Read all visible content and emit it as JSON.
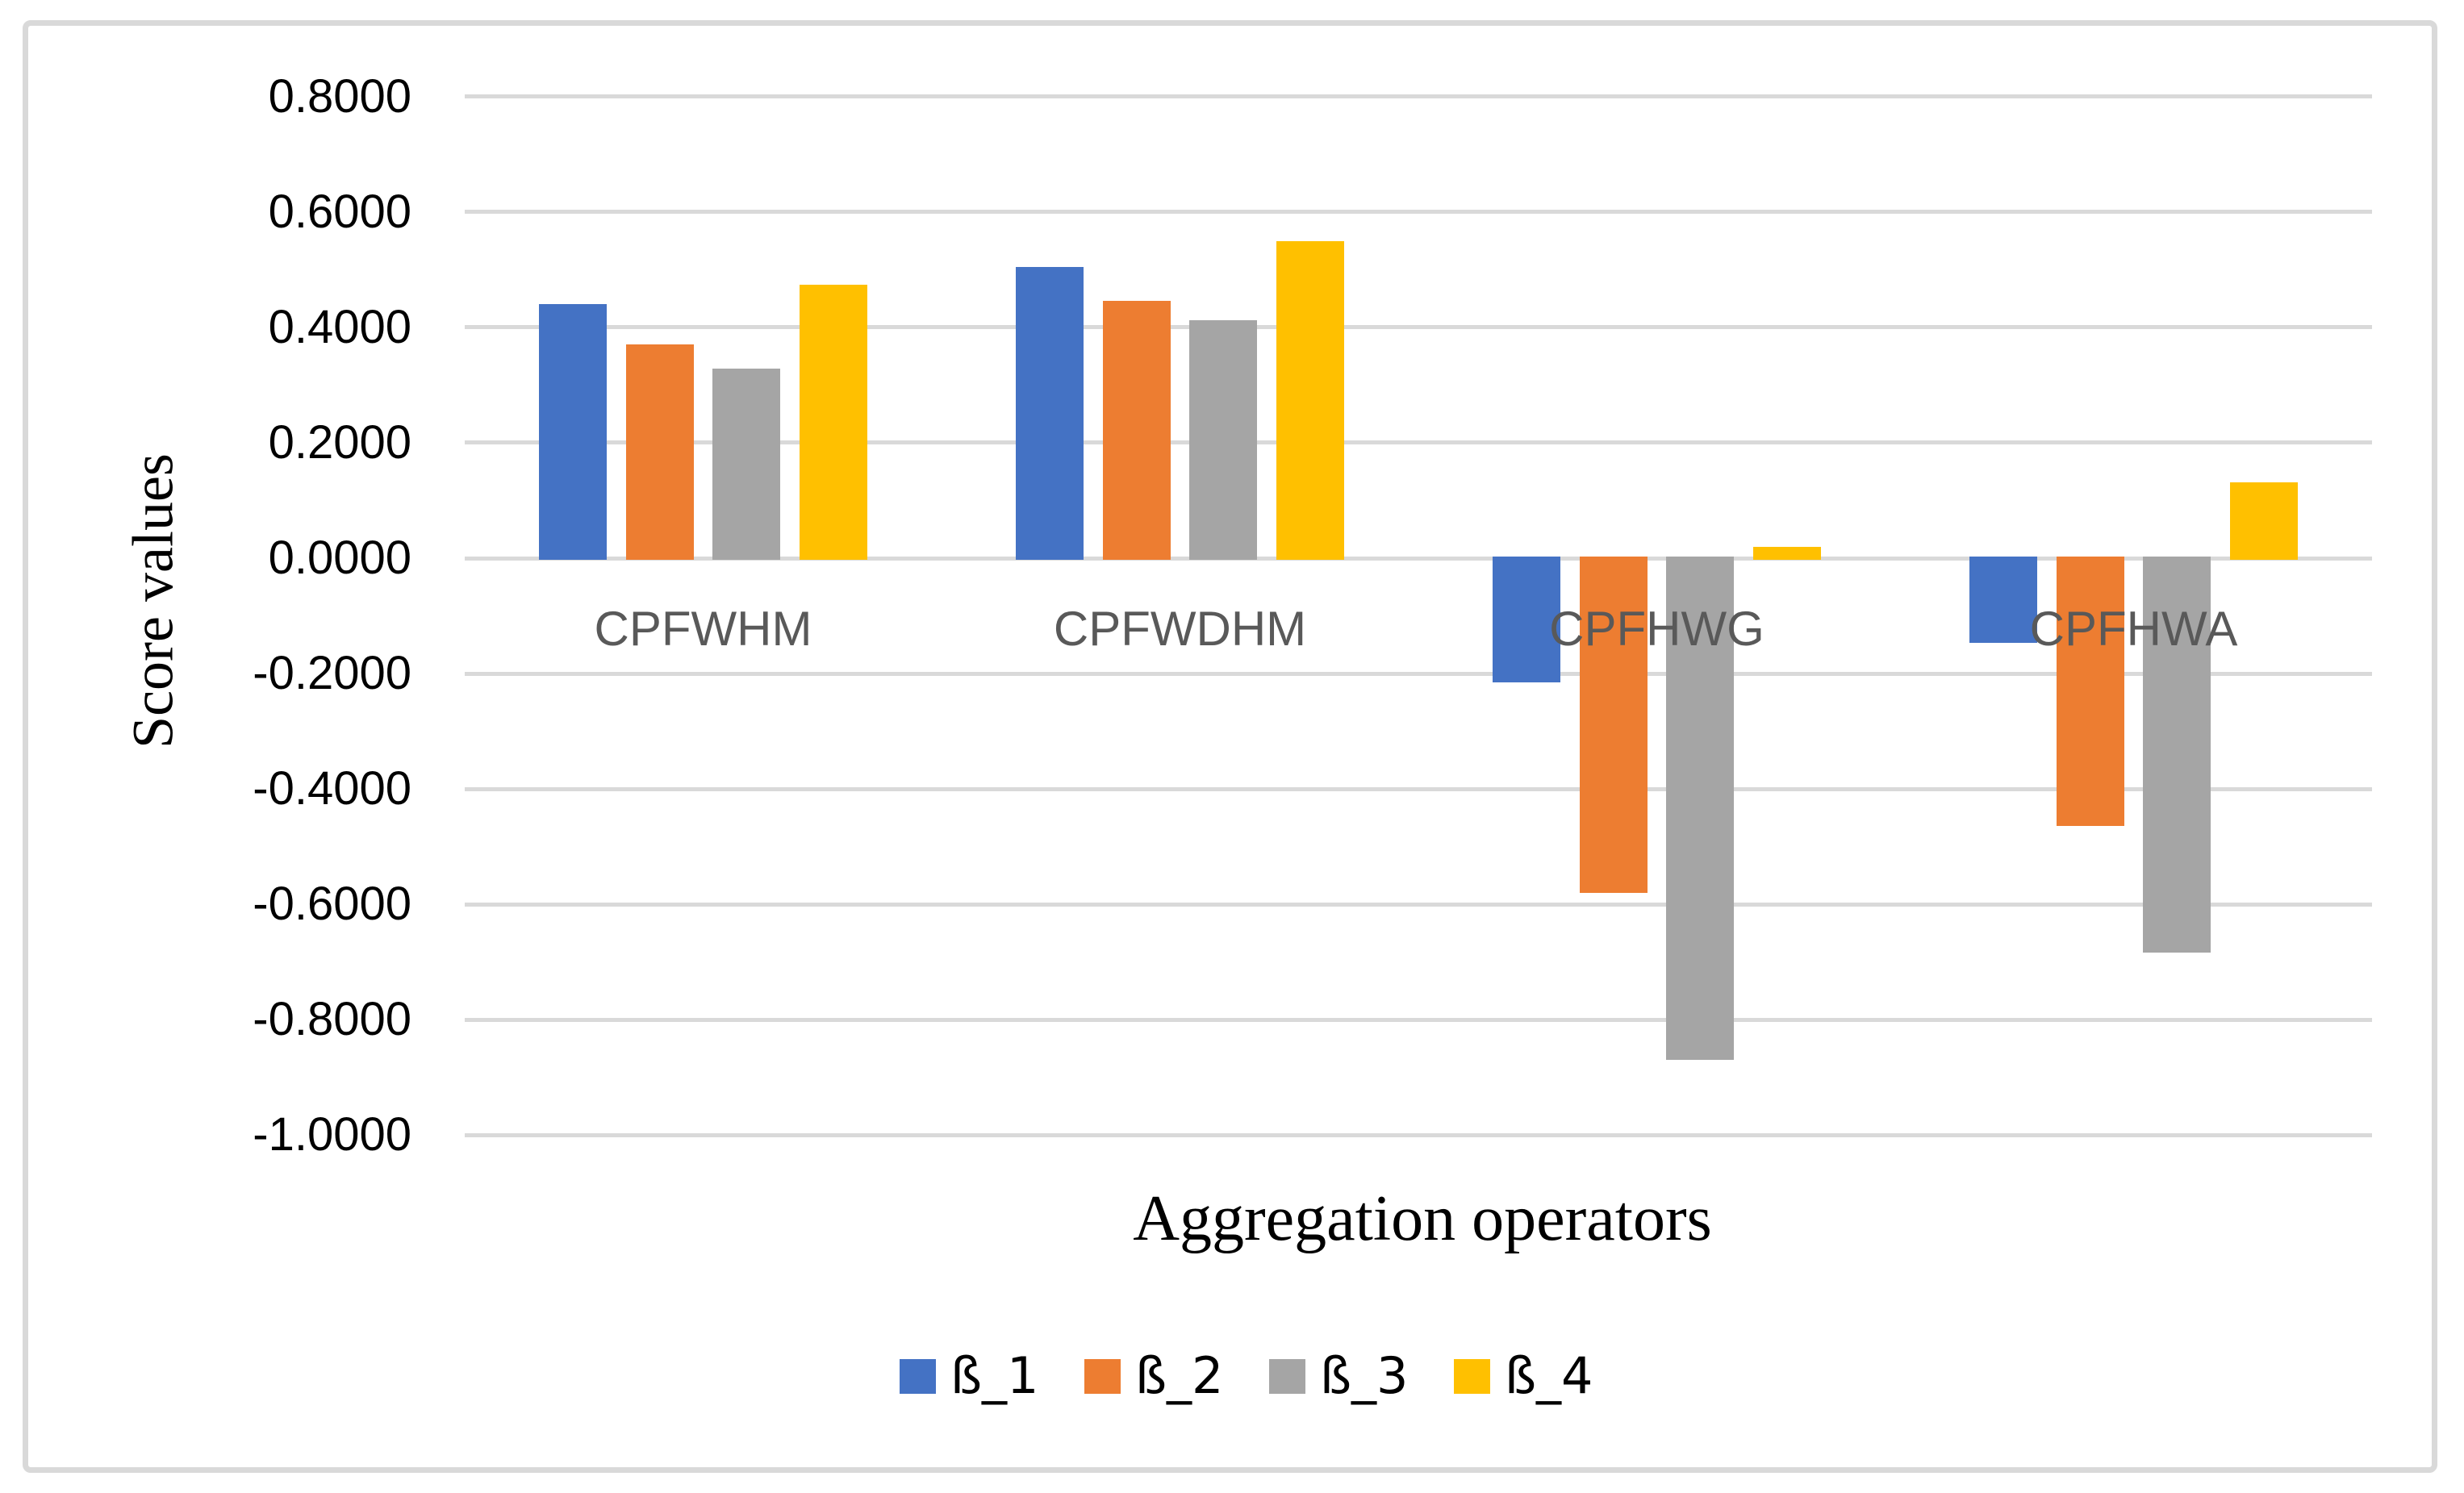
{
  "figure": {
    "background_color": "#FFFFFF",
    "frame_border_color": "#D9D9D9"
  },
  "chart_data": {
    "type": "bar",
    "title": "",
    "xlabel": "Aggregation operators",
    "ylabel": "Score values",
    "categories": [
      "CPFWHM",
      "CPFWDHM",
      "CPFHWG",
      "CPFHWA"
    ],
    "series": [
      {
        "name": "ß_1",
        "color": "#4472C4",
        "values": [
          0.441,
          0.505,
          -0.215,
          -0.147
        ]
      },
      {
        "name": "ß_2",
        "color": "#ED7D31",
        "values": [
          0.371,
          0.446,
          -0.58,
          -0.464
        ]
      },
      {
        "name": "ß_3",
        "color": "#A5A5A5",
        "values": [
          0.329,
          0.412,
          -0.87,
          -0.683
        ]
      },
      {
        "name": "ß_4",
        "color": "#FFC000",
        "values": [
          0.474,
          0.549,
          0.02,
          0.132
        ]
      }
    ],
    "ylim": [
      -1.0,
      0.8
    ],
    "ytick_step": 0.2,
    "yticks": [
      0.8,
      0.6,
      0.4,
      0.2,
      0.0,
      -0.2,
      -0.4,
      -0.6,
      -0.8,
      -1.0
    ],
    "ytick_labels": [
      "0.8000",
      "0.6000",
      "0.4000",
      "0.2000",
      "0.0000",
      "-0.2000",
      "-0.4000",
      "-0.6000",
      "-0.8000",
      "-1.0000"
    ],
    "grid": true,
    "gridline_color": "#D9D9D9",
    "category_label_color": "#595959",
    "tick_label_color": "#000000",
    "legend_position": "bottom"
  }
}
